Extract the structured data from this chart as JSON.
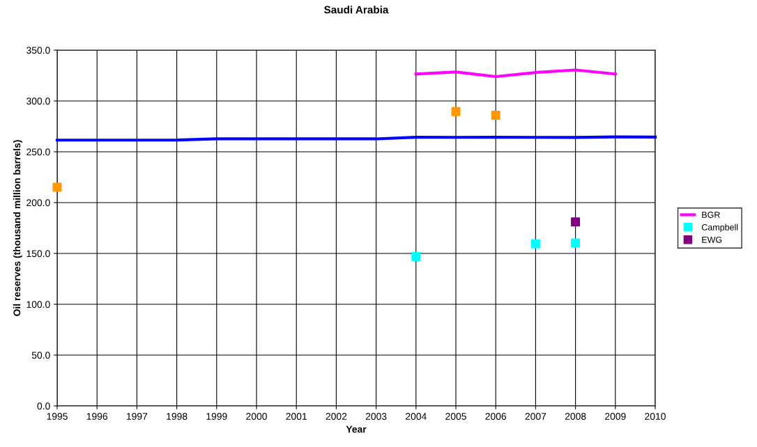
{
  "chart_data": {
    "type": "line",
    "title": "Saudi Arabia",
    "xlabel": "Year",
    "ylabel": "Oil reserves (thousand million barrels)",
    "xlim": [
      1995,
      2010
    ],
    "xticks": [
      1995,
      1996,
      1997,
      1998,
      1999,
      2000,
      2001,
      2002,
      2003,
      2004,
      2005,
      2006,
      2007,
      2008,
      2009,
      2010
    ],
    "ylim": [
      0,
      350
    ],
    "yticks": [
      {
        "value": 0,
        "label": "0.0"
      },
      {
        "value": 50,
        "label": "50.0"
      },
      {
        "value": 100,
        "label": "100.0"
      },
      {
        "value": 150,
        "label": "150.0"
      },
      {
        "value": 200,
        "label": "200.0"
      },
      {
        "value": 250,
        "label": "250.0"
      },
      {
        "value": 300,
        "label": "300.0"
      },
      {
        "value": 350,
        "label": "350.0"
      }
    ],
    "grid": true,
    "legend": "right",
    "series": [
      {
        "color": "#0000ff",
        "x": [
          1995,
          1996,
          1997,
          1998,
          1999,
          2000,
          2001,
          2002,
          2003,
          2004,
          2005,
          2006,
          2007,
          2008,
          2009,
          2010
        ],
        "values": [
          261.5,
          261.5,
          261.5,
          261.5,
          262.8,
          262.8,
          262.7,
          262.8,
          262.7,
          264.3,
          264.2,
          264.3,
          264.2,
          264.1,
          264.6,
          264.5
        ]
      },
      {
        "name": "BGR",
        "color": "#ff00ff",
        "x": [
          2004,
          2005,
          2006,
          2007,
          2008,
          2009
        ],
        "values": [
          326.5,
          328.5,
          324,
          328,
          330.5,
          326.5
        ]
      },
      {
        "type": "scatter",
        "marker": "square",
        "color": "#ff9900",
        "x": [
          1995,
          2005,
          2006
        ],
        "values": [
          215,
          289.5,
          286
        ]
      },
      {
        "type": "scatter",
        "marker": "square",
        "name": "Campbell",
        "color": "#00ffff",
        "x": [
          2004,
          2007,
          2008
        ],
        "values": [
          147,
          159.5,
          160.3
        ]
      },
      {
        "type": "scatter",
        "marker": "square",
        "name": "EWG",
        "color": "#800080",
        "x": [
          2008
        ],
        "values": [
          181
        ]
      }
    ]
  }
}
